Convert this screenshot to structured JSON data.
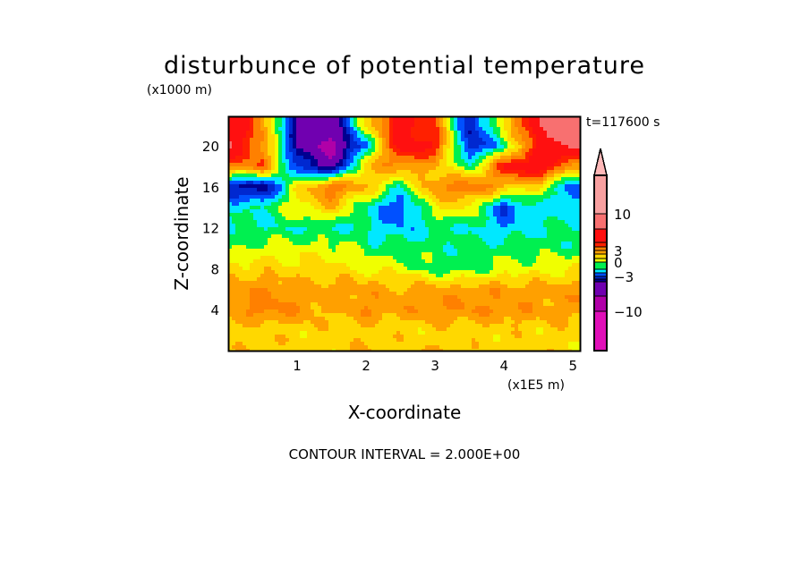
{
  "chart_data": {
    "type": "heatmap",
    "title": "disturbunce of potential temperature",
    "xlabel": "X-coordinate",
    "ylabel": "Z-coordinate",
    "x_unit": "(x1E5 m)",
    "y_unit": "(x1000 m)",
    "time_label": "t=117600 s",
    "footer": "CONTOUR INTERVAL = 2.000E+00",
    "xlim": [
      0,
      5.1
    ],
    "ylim": [
      0,
      22.9
    ],
    "xticks": [
      {
        "v": 1,
        "label": "1"
      },
      {
        "v": 2,
        "label": "2"
      },
      {
        "v": 3,
        "label": "3"
      },
      {
        "v": 4,
        "label": "4"
      },
      {
        "v": 5,
        "label": "5"
      }
    ],
    "yticks": [
      {
        "v": 4,
        "label": "4"
      },
      {
        "v": 8,
        "label": "8"
      },
      {
        "v": 12,
        "label": "12"
      },
      {
        "v": 16,
        "label": "16"
      },
      {
        "v": 20,
        "label": "20"
      }
    ],
    "grid_x": [
      0,
      0.5,
      1,
      1.5,
      2,
      2.5,
      3,
      3.5,
      4,
      4.5,
      5
    ],
    "grid_z": [
      22,
      20,
      18,
      16,
      14,
      12,
      10,
      8,
      6,
      4,
      2,
      0
    ],
    "field_approx": [
      [
        7,
        3,
        -5,
        -6,
        1,
        6,
        4,
        -4,
        1,
        7,
        10
      ],
      [
        7,
        3,
        -5,
        -8,
        -2,
        6,
        5,
        -4,
        -1,
        5,
        8
      ],
      [
        3,
        4,
        -3,
        -6,
        2,
        3,
        2,
        -1,
        5,
        7,
        2
      ],
      [
        -4,
        -5,
        1,
        4,
        2,
        -1,
        3,
        4,
        2,
        1,
        -3
      ],
      [
        -1,
        -1,
        1,
        2,
        -1,
        -3,
        1,
        1,
        -3,
        -1,
        -2
      ],
      [
        -1,
        -1,
        -1,
        -1,
        -1,
        -2,
        -1,
        -1,
        -2,
        -1,
        -1
      ],
      [
        -0.5,
        0.5,
        0.5,
        0.5,
        -0.5,
        -0.5,
        -0.5,
        -0.7,
        -0.5,
        -0.5,
        -0.5
      ],
      [
        1.5,
        1.5,
        1.5,
        1.2,
        0.8,
        0.5,
        -0.5,
        -0.5,
        0.5,
        0.5,
        1
      ],
      [
        2.5,
        3,
        2.5,
        2.5,
        2.5,
        2.2,
        2.5,
        2.5,
        2.5,
        2.5,
        2.5
      ],
      [
        2.5,
        3.5,
        3,
        2,
        3,
        2.5,
        3,
        3,
        3,
        2.5,
        2.5
      ],
      [
        1.5,
        1.5,
        1.5,
        1.5,
        1.5,
        1.5,
        1.5,
        1.5,
        1.5,
        1.5,
        1.5
      ],
      [
        1.5,
        2,
        1.5,
        1.5,
        2,
        1.5,
        2,
        1.5,
        1.5,
        1.5,
        1.5
      ]
    ],
    "levels": [
      -15,
      -10,
      -7,
      -5,
      -4,
      -3,
      -2,
      -1,
      0,
      1,
      2,
      3,
      4,
      5,
      7,
      10,
      15
    ],
    "colors": [
      "#e010b8",
      "#b000a8",
      "#7000b0",
      "#000090",
      "#0028d0",
      "#0050ff",
      "#00e8ff",
      "#00f050",
      "#f0ff00",
      "#ffd800",
      "#ffa000",
      "#ff8000",
      "#ff2000",
      "#ff1010",
      "#f87070",
      "#f8a0a0"
    ],
    "over_color": "#ffb8b8",
    "colorbar_labels": [
      {
        "v": 10,
        "label": "10"
      },
      {
        "v": 3,
        "label": "3"
      },
      {
        "v": 0,
        "label": "0"
      },
      {
        "v": -3,
        "label": "−3"
      },
      {
        "v": -10,
        "label": "−10"
      }
    ]
  }
}
